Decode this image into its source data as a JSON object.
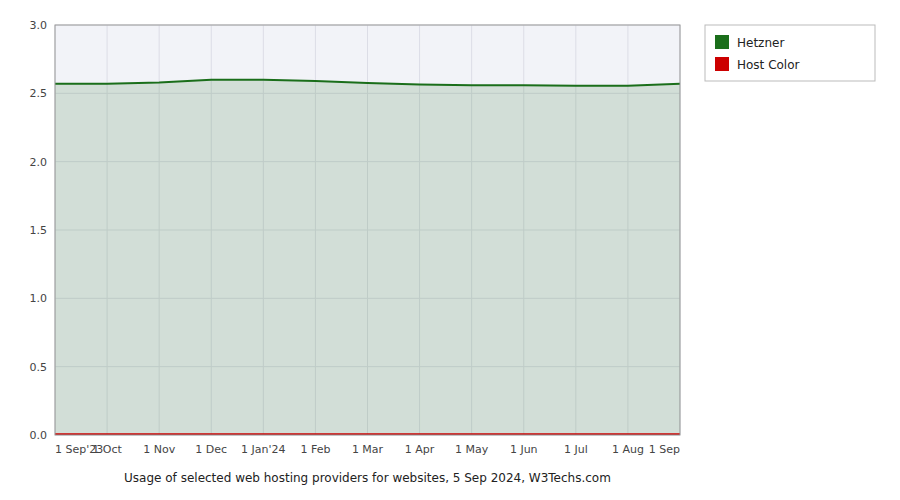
{
  "chart_data": {
    "type": "area",
    "title": "Usage of selected web hosting providers for websites, 5 Sep 2024, W3Techs.com",
    "categories": [
      "1 Sep'23",
      "1 Oct",
      "1 Nov",
      "1 Dec",
      "1 Jan'24",
      "1 Feb",
      "1 Mar",
      "1 Apr",
      "1 May",
      "1 Jun",
      "1 Jul",
      "1 Aug",
      "1 Sep"
    ],
    "series": [
      {
        "name": "Hetzner",
        "color": "#1a6e1a",
        "values": [
          2.57,
          2.57,
          2.58,
          2.6,
          2.6,
          2.59,
          2.575,
          2.565,
          2.56,
          2.56,
          2.555,
          2.555,
          2.57
        ]
      },
      {
        "name": "Host Color",
        "color": "#cc0000",
        "values": [
          0.005,
          0.005,
          0.005,
          0.005,
          0.005,
          0.005,
          0.005,
          0.005,
          0.005,
          0.005,
          0.005,
          0.005,
          0.005
        ]
      }
    ],
    "ylim": [
      0,
      3.0
    ],
    "yticks": [
      {
        "value": 0,
        "label": "0.0"
      },
      0.5,
      {
        "value": 1,
        "label": "1.0"
      },
      1.5,
      {
        "value": 2,
        "label": "2.0"
      },
      2.5,
      {
        "value": 3,
        "label": "3.0"
      }
    ],
    "grid": true,
    "legend": "right"
  }
}
